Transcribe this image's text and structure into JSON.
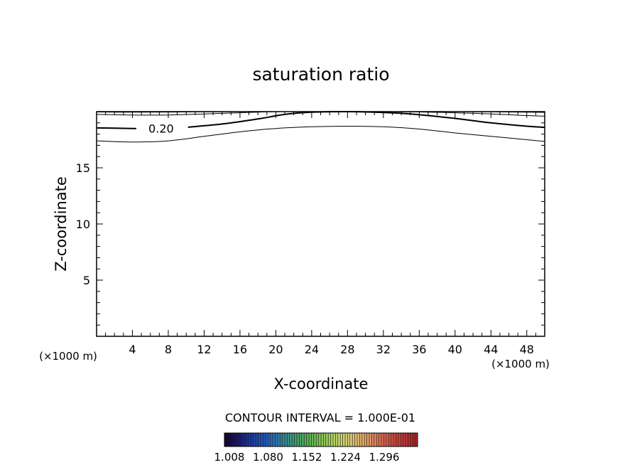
{
  "chart_data": {
    "type": "contour",
    "title": "saturation ratio",
    "xlabel": "X-coordinate",
    "ylabel": "Z-coordinate",
    "x_unit": "(×1000 m)",
    "xlim": [
      0,
      50
    ],
    "ylim": [
      0,
      20
    ],
    "x_ticks": [
      4,
      8,
      12,
      16,
      20,
      24,
      28,
      32,
      36,
      40,
      44,
      48
    ],
    "y_ticks": [
      5,
      10,
      15
    ],
    "contour_interval_text": "CONTOUR INTERVAL = 1.000E-01",
    "contours": [
      {
        "level": 0.1,
        "label": "",
        "bold": false,
        "x": [
          0,
          4,
          8,
          12,
          16,
          20,
          24,
          28,
          32,
          36,
          40,
          44,
          48,
          50
        ],
        "y": [
          17.4,
          17.3,
          17.4,
          17.8,
          18.2,
          18.5,
          18.65,
          18.7,
          18.65,
          18.45,
          18.1,
          17.8,
          17.5,
          17.35
        ]
      },
      {
        "level": 0.2,
        "label": "0.20",
        "bold": true,
        "x": [
          0,
          4,
          6.5,
          10,
          14,
          18,
          21,
          24,
          28,
          31,
          35,
          40,
          44,
          48,
          50
        ],
        "y": [
          18.55,
          18.5,
          18.5,
          18.6,
          18.9,
          19.35,
          19.75,
          19.95,
          20.0,
          19.95,
          19.8,
          19.4,
          19.0,
          18.7,
          18.6
        ]
      },
      {
        "level": 0.3,
        "label": "",
        "bold": false,
        "x": [
          0,
          4,
          8,
          12,
          16,
          19,
          20.5
        ],
        "y": [
          19.75,
          19.7,
          19.7,
          19.8,
          19.9,
          19.98,
          20.0
        ]
      },
      {
        "level": 0.3,
        "label": "",
        "bold": false,
        "x": [
          33,
          36,
          40,
          44,
          48,
          50
        ],
        "y": [
          20.0,
          19.97,
          19.9,
          19.8,
          19.65,
          19.6
        ]
      },
      {
        "level": 0.4,
        "label": "",
        "bold": false,
        "x": [
          0,
          4,
          8,
          12,
          16
        ],
        "y": [
          19.97,
          19.95,
          19.96,
          19.98,
          20.0
        ]
      },
      {
        "level": 0.4,
        "label": "",
        "bold": false,
        "x": [
          40,
          44,
          48,
          50
        ],
        "y": [
          20.0,
          19.98,
          19.95,
          19.93
        ]
      }
    ],
    "colorbar": {
      "tick_labels": [
        "1.008",
        "1.080",
        "1.152",
        "1.224",
        "1.296"
      ],
      "colors": [
        "#1a0033",
        "#1c1a6e",
        "#1f3aa0",
        "#2256b8",
        "#2f79b0",
        "#3a9488",
        "#4ba860",
        "#6fbb4e",
        "#9ccc5a",
        "#c8d672",
        "#e0c878",
        "#e2a468",
        "#dc7a58",
        "#cf5448",
        "#c03838",
        "#a82828"
      ]
    }
  }
}
